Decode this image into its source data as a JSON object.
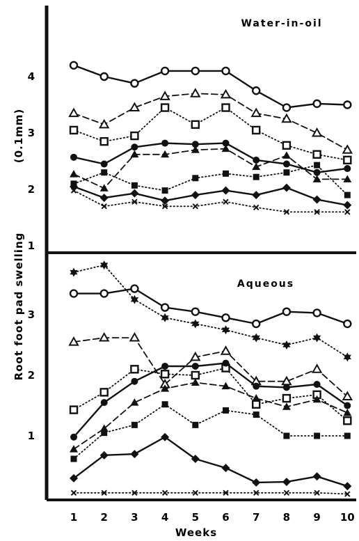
{
  "chart_data": {
    "type": "line",
    "ylabel": "Root foot pad swelling",
    "yunit": "(0.1mm)",
    "xlabel": "Weeks",
    "x": [
      1,
      2,
      3,
      4,
      5,
      6,
      7,
      8,
      9,
      10
    ],
    "x_tick_labels": [
      "1",
      "2",
      "3",
      "4",
      "5",
      "6",
      "7",
      "8",
      "9",
      "10"
    ],
    "panels": [
      {
        "title": "Water-in-oil",
        "ylim": [
          1,
          4.6
        ],
        "yticks": [
          1,
          2,
          3,
          4
        ],
        "ytick_labels": [
          "1",
          "2",
          "3",
          "4"
        ],
        "series": [
          {
            "marker": "open-circle",
            "line": "solid",
            "values": [
              4.2,
              4.0,
              3.88,
              4.1,
              4.1,
              4.1,
              3.75,
              3.45,
              3.52,
              3.5
            ]
          },
          {
            "marker": "open-triangle",
            "line": "dashed",
            "values": [
              3.35,
              3.15,
              3.45,
              3.65,
              3.7,
              3.68,
              3.35,
              3.25,
              3.0,
              2.7
            ]
          },
          {
            "marker": "open-square",
            "line": "dotted",
            "values": [
              3.05,
              2.85,
              2.95,
              3.45,
              3.15,
              3.45,
              3.05,
              2.78,
              2.62,
              2.52
            ]
          },
          {
            "marker": "filled-circle",
            "line": "solid",
            "values": [
              2.57,
              2.45,
              2.75,
              2.82,
              2.8,
              2.82,
              2.52,
              2.45,
              2.3,
              2.37
            ]
          },
          {
            "marker": "filled-triangle",
            "line": "dashed",
            "values": [
              2.27,
              2.02,
              2.62,
              2.62,
              2.7,
              2.72,
              2.4,
              2.6,
              2.18,
              2.18
            ]
          },
          {
            "marker": "filled-square",
            "line": "dotted",
            "values": [
              2.1,
              2.3,
              2.07,
              1.98,
              2.2,
              2.28,
              2.22,
              2.3,
              2.43,
              1.9
            ]
          },
          {
            "marker": "filled-diamond",
            "line": "solid",
            "values": [
              2.05,
              1.85,
              1.93,
              1.8,
              1.9,
              1.98,
              1.9,
              2.03,
              1.82,
              1.72
            ]
          },
          {
            "marker": "cross",
            "line": "dotted",
            "values": [
              1.98,
              1.7,
              1.78,
              1.7,
              1.7,
              1.78,
              1.68,
              1.6,
              1.6,
              1.6
            ]
          }
        ]
      },
      {
        "title": "Aqueous",
        "ylim": [
          0,
          3.9
        ],
        "yticks": [
          1,
          2,
          3
        ],
        "ytick_labels": [
          "1",
          "2",
          "3"
        ],
        "series": [
          {
            "marker": "filled-star",
            "line": "dotted",
            "values": [
              3.7,
              3.82,
              3.25,
              2.95,
              2.85,
              2.75,
              2.62,
              2.5,
              2.62,
              2.3
            ]
          },
          {
            "marker": "open-circle",
            "line": "solid",
            "values": [
              3.35,
              3.35,
              3.43,
              3.12,
              3.05,
              2.95,
              2.85,
              3.05,
              3.03,
              2.85
            ]
          },
          {
            "marker": "open-triangle",
            "line": "dashed",
            "values": [
              2.55,
              2.62,
              2.62,
              1.85,
              2.3,
              2.4,
              1.9,
              1.9,
              2.1,
              1.65
            ]
          },
          {
            "marker": "open-square",
            "line": "dotted",
            "values": [
              1.43,
              1.72,
              2.1,
              2.02,
              2.0,
              2.12,
              1.52,
              1.62,
              1.68,
              1.25
            ]
          },
          {
            "marker": "filled-circle",
            "line": "solid",
            "values": [
              0.98,
              1.55,
              1.9,
              2.15,
              2.15,
              2.2,
              1.82,
              1.8,
              1.85,
              1.5
            ]
          },
          {
            "marker": "filled-triangle",
            "line": "dashed",
            "values": [
              0.78,
              1.12,
              1.55,
              1.78,
              1.88,
              1.82,
              1.62,
              1.48,
              1.6,
              1.38
            ]
          },
          {
            "marker": "filled-square",
            "line": "dotted",
            "values": [
              0.62,
              1.05,
              1.18,
              1.52,
              1.18,
              1.42,
              1.35,
              1.0,
              1.0,
              1.0
            ]
          },
          {
            "marker": "filled-diamond",
            "line": "solid",
            "values": [
              0.3,
              0.68,
              0.7,
              0.98,
              0.62,
              0.47,
              0.23,
              0.24,
              0.33,
              0.17
            ]
          },
          {
            "marker": "cross",
            "line": "dotted",
            "values": [
              0.06,
              0.06,
              0.06,
              0.06,
              0.06,
              0.06,
              0.06,
              0.06,
              0.06,
              0.04
            ]
          }
        ]
      }
    ]
  }
}
